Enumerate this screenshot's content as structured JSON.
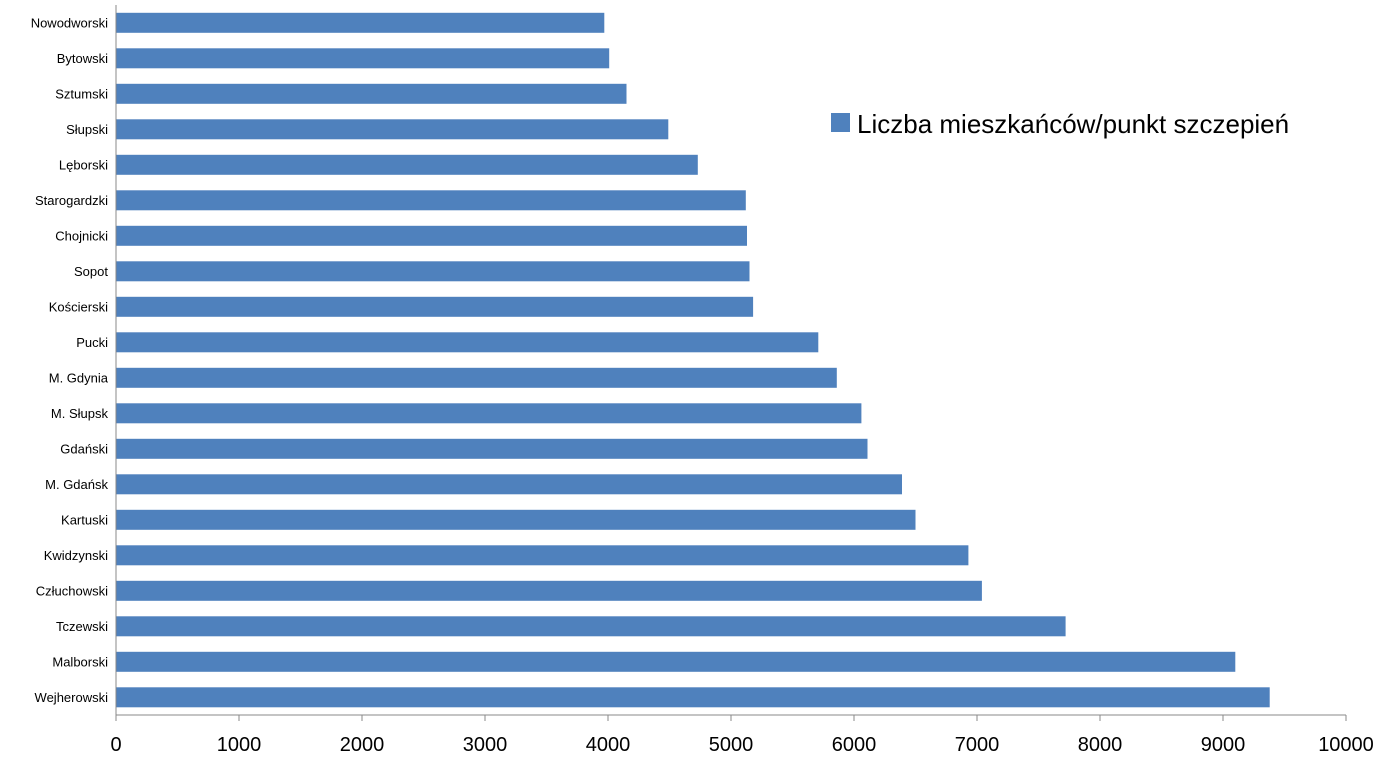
{
  "chart_data": {
    "type": "bar",
    "orientation": "horizontal",
    "categories": [
      "Nowodworski",
      "Bytowski",
      "Sztumski",
      "Słupski",
      "Lęborski",
      "Starogardzki",
      "Chojnicki",
      "Sopot",
      "Kościerski",
      "Pucki",
      "M. Gdynia",
      "M. Słupsk",
      "Gdański",
      "M. Gdańsk",
      "Kartuski",
      "Kwidzynski",
      "Człuchowski",
      "Tczewski",
      "Malborski",
      "Wejherowski"
    ],
    "series": [
      {
        "name": "Liczba mieszkańców/punkt szczepień",
        "color": "#4f81bd",
        "values": [
          3970,
          4010,
          4150,
          4490,
          4730,
          5120,
          5130,
          5150,
          5180,
          5710,
          5860,
          6060,
          6110,
          6390,
          6500,
          6930,
          7040,
          7720,
          9100,
          9380
        ]
      }
    ],
    "xlim": [
      0,
      10000
    ],
    "xticks": [
      "0",
      "1000",
      "2000",
      "3000",
      "4000",
      "5000",
      "6000",
      "7000",
      "8000",
      "9000",
      "10000"
    ],
    "grid": false,
    "legend_position": "top-right"
  }
}
